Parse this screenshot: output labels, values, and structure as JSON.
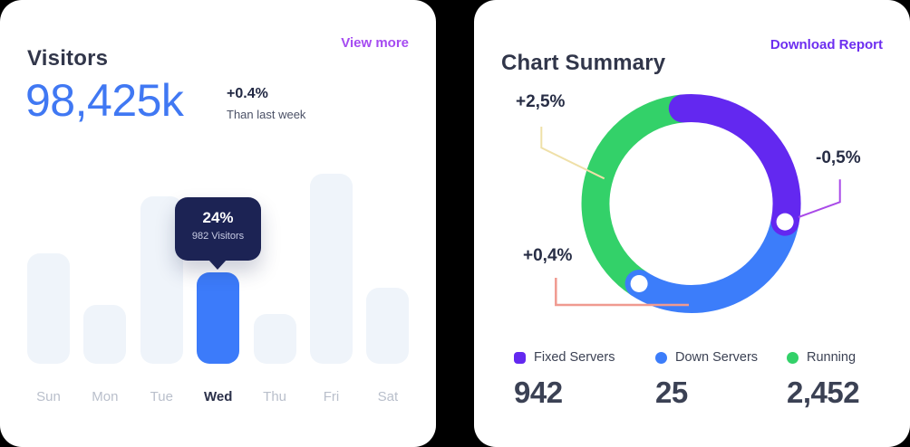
{
  "colors": {
    "page_bg": "#000000",
    "card_bg": "#ffffff",
    "bar_active": "#3c7bfa",
    "bar_inactive": "#eff4fa",
    "tooltip_bg": "#1c2354",
    "link_light_purple": "#a54bf1",
    "link_violet": "#6d2ef0",
    "metric_blue": "#4078f3",
    "line_yellow": "#efe0a8",
    "line_salmon": "#f09a90",
    "line_purple": "#a94ae8"
  },
  "visitors_card": {
    "title": "Visitors",
    "action": "View more",
    "metric": {
      "value": "98,425k",
      "delta": "+0.4%",
      "delta_caption": "Than last week"
    },
    "tooltip": {
      "percent": "24%",
      "caption": "982 Visitors"
    },
    "days": [
      "Sun",
      "Mon",
      "Tue",
      "Wed",
      "Thu",
      "Fri",
      "Sat"
    ]
  },
  "summary_card": {
    "title": "Chart Summary",
    "action": "Download Report",
    "annotations": {
      "running": "+2,5%",
      "fixed": "-0,5%",
      "down": "+0,4%"
    },
    "legend": [
      {
        "label": "Fixed Servers",
        "value": "942",
        "color": "#6328f0"
      },
      {
        "label": "Down Servers",
        "value": "25",
        "color": "#3c7dfa"
      },
      {
        "label": "Running",
        "value": "2,452",
        "color": "#33d169"
      }
    ]
  },
  "chart_data": [
    {
      "type": "bar",
      "title": "Visitors",
      "categories": [
        "Sun",
        "Mon",
        "Tue",
        "Wed",
        "Thu",
        "Fri",
        "Sat"
      ],
      "values_pct": [
        29,
        15.5,
        44,
        24,
        13,
        50,
        20
      ],
      "highlight_index": 3,
      "highlight": {
        "day": "Wed",
        "percent": "24%",
        "visitors": "982 Visitors"
      },
      "ylabel": "",
      "xlabel": "",
      "grid": false,
      "note": "only Wed value labeled (24%, 982 visitors); other values estimated from bar heights"
    },
    {
      "type": "pie",
      "title": "Chart Summary",
      "legend_position": "bottom",
      "segments": [
        {
          "label": "Fixed Servers",
          "value": 942,
          "color": "#6328f0",
          "annotation": "-0,5%",
          "arc_degrees": 106
        },
        {
          "label": "Down Servers",
          "value": 25,
          "color": "#3c7dfa",
          "annotation": "+0,4%",
          "arc_degrees": 112
        },
        {
          "label": "Running",
          "value": 2452,
          "color": "#33d169",
          "annotation": "+2,5%",
          "arc_degrees": 142
        }
      ],
      "note": "donut arc sizes are stylized, not proportional to values"
    }
  ]
}
